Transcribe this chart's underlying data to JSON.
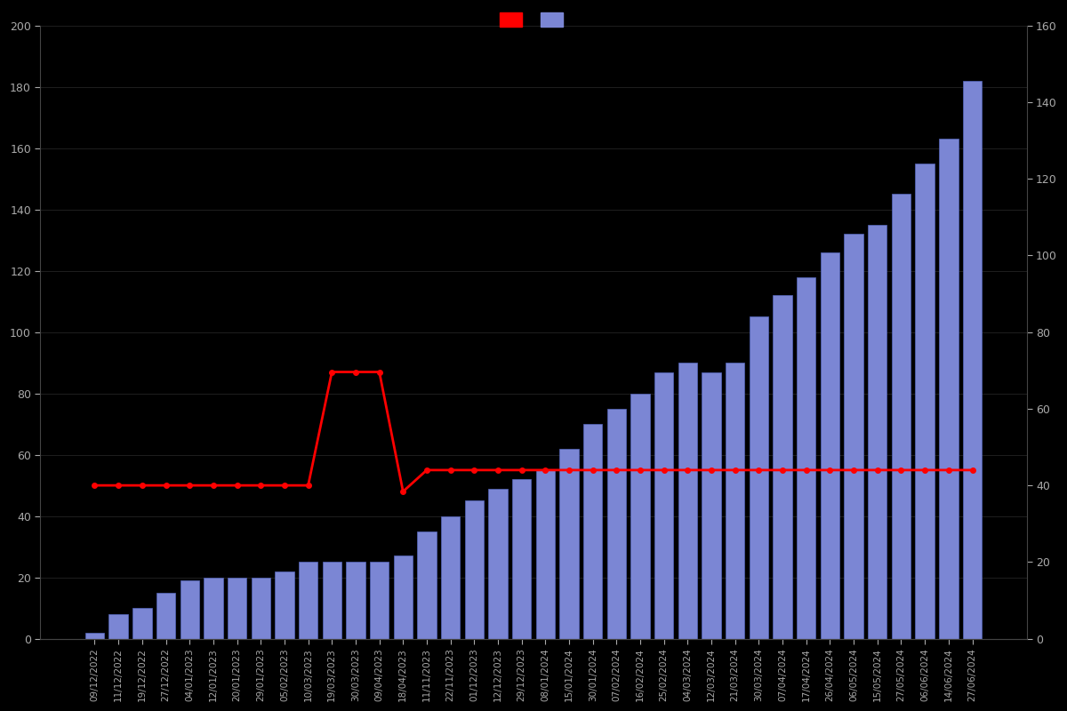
{
  "dates": [
    "09/12/2022",
    "11/12/2022",
    "19/12/2022",
    "27/12/2022",
    "04/01/2023",
    "12/01/2023",
    "20/01/2023",
    "29/01/2023",
    "05/02/2023",
    "10/03/2023",
    "19/03/2023",
    "30/03/2023",
    "09/04/2023",
    "18/04/2023",
    "11/11/2023",
    "22/11/2023",
    "01/12/2023",
    "12/12/2023",
    "29/12/2023",
    "08/01/2024",
    "15/01/2024",
    "30/01/2024",
    "07/02/2024",
    "16/02/2024",
    "25/02/2024",
    "04/03/2024",
    "12/03/2024",
    "21/03/2024",
    "30/03/2024",
    "07/04/2024",
    "17/04/2024",
    "26/04/2024",
    "06/05/2024",
    "15/05/2024",
    "27/05/2024",
    "06/06/2024",
    "14/06/2024",
    "27/06/2024"
  ],
  "bar_values": [
    2,
    8,
    10,
    15,
    19,
    20,
    20,
    20,
    22,
    25,
    25,
    25,
    25,
    27,
    35,
    40,
    45,
    49,
    52,
    55,
    62,
    70,
    75,
    80,
    87,
    90,
    87,
    90,
    105,
    112,
    118,
    126,
    132,
    135,
    145,
    155,
    163,
    182
  ],
  "price_values": [
    50,
    50,
    50,
    50,
    50,
    50,
    50,
    50,
    50,
    50,
    87,
    87,
    87,
    48,
    55,
    55,
    55,
    55,
    55,
    55,
    55,
    55,
    55,
    55,
    55,
    55,
    55,
    55,
    55,
    55,
    55,
    55,
    55,
    55,
    55,
    55,
    55,
    55
  ],
  "bar_color": "#7B86D4",
  "bar_edge_color": "#5566BB",
  "line_color": "#FF0000",
  "background_color": "#000000",
  "text_color": "#AAAAAA",
  "left_ylim": [
    0,
    200
  ],
  "right_ylim": [
    0,
    160
  ],
  "left_yticks": [
    0,
    20,
    40,
    60,
    80,
    100,
    120,
    140,
    160,
    180,
    200
  ],
  "right_yticks": [
    0,
    20,
    40,
    60,
    80,
    100,
    120,
    140,
    160
  ],
  "grid_color": "#2A2A2A",
  "spine_color": "#444444"
}
